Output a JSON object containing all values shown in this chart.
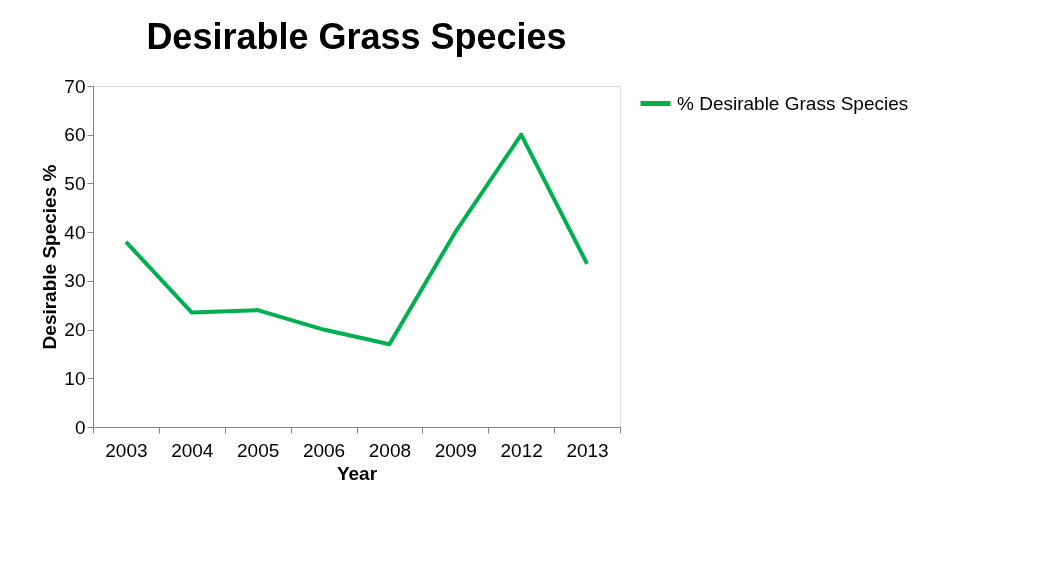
{
  "chart_data": {
    "type": "line",
    "title": "Desirable Grass Species",
    "xlabel": "Year",
    "ylabel": "Desirable Species %",
    "categories": [
      "2003",
      "2004",
      "2005",
      "2006",
      "2008",
      "2009",
      "2012",
      "2013"
    ],
    "series": [
      {
        "name": "% Desirable Grass Species",
        "color": "#00b050",
        "values": [
          38,
          23.5,
          24,
          20,
          17,
          40,
          60,
          33.5
        ]
      }
    ],
    "ylim": [
      0,
      70
    ],
    "yticks": [
      0,
      10,
      20,
      30,
      40,
      50,
      60,
      70
    ],
    "grid": false,
    "legend": "right",
    "marker": "none",
    "line_style": "solid"
  }
}
